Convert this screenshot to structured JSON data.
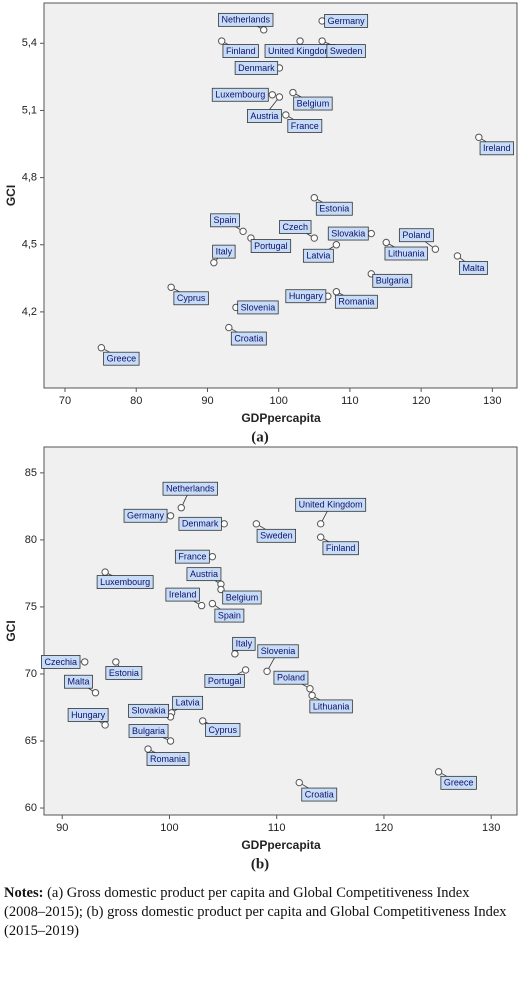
{
  "chart_data": [
    {
      "type": "scatter",
      "caption": "(a)",
      "xlabel": "GDPpercapita",
      "ylabel": "GCI",
      "xlim": [
        67.05,
        133.6
      ],
      "xticks": [
        70,
        80,
        90,
        100,
        110,
        120,
        130
      ],
      "ylim": [
        3.86,
        5.58
      ],
      "yticks": [
        {
          "value": 4.2,
          "label": "4,2"
        },
        {
          "value": 4.5,
          "label": "4,5"
        },
        {
          "value": 4.8,
          "label": "4,8"
        },
        {
          "value": 5.1,
          "label": "5,1"
        },
        {
          "value": 5.4,
          "label": "5,4"
        }
      ],
      "point_labels": [
        "Netherlands",
        "Germany",
        "Finland",
        "United Kingdom",
        "Sweden",
        "Denmark",
        "Luxembourg",
        "Belgium",
        "Austria",
        "France",
        "Ireland",
        "Estonia",
        "Spain",
        "Czech",
        "Portugal",
        "Slovakia",
        "Latvia",
        "Lithuania",
        "Poland",
        "Italy",
        "Malta",
        "Bulgaria",
        "Cyprus",
        "Hungary",
        "Romania",
        "Slovenia",
        "Croatia",
        "Greece"
      ],
      "x": [
        97.9,
        106.1,
        92.0,
        103.0,
        106.1,
        100.1,
        99.1,
        102.0,
        100.1,
        101.0,
        128.1,
        105.0,
        95.0,
        105.0,
        96.1,
        113.0,
        108.1,
        115.1,
        122.0,
        90.9,
        125.1,
        113.0,
        84.9,
        106.9,
        108.1,
        94.0,
        93.0,
        75.1
      ],
      "values": [
        5.46,
        5.5,
        5.41,
        5.41,
        5.41,
        5.29,
        5.17,
        5.18,
        5.16,
        5.08,
        4.98,
        4.71,
        4.56,
        4.53,
        4.53,
        4.55,
        4.5,
        4.51,
        4.48,
        4.42,
        4.45,
        4.37,
        4.31,
        4.27,
        4.29,
        4.22,
        4.13,
        4.04
      ]
    },
    {
      "type": "scatter",
      "caption": "(b)",
      "xlabel": "GDPpercapita",
      "ylabel": "GCI",
      "xlim": [
        88.3,
        132.5
      ],
      "xticks": [
        90,
        100,
        110,
        120,
        130
      ],
      "ylim": [
        59.48,
        86.93
      ],
      "yticks": [
        60,
        65,
        70,
        75,
        80,
        85
      ],
      "point_labels": [
        "Netherlands",
        "Germany",
        "Denmark",
        "Sweden",
        "United Kingdom",
        "Finland",
        "France",
        "Luxembourg",
        "Austria",
        "Belgium",
        "Ireland",
        "Spain",
        "Italy",
        "Czechia",
        "Estonia",
        "Portugal",
        "Slovenia",
        "Poland",
        "Lithuania",
        "Malta",
        "Hungary",
        "Latvia",
        "Slovakia",
        "Cyprus",
        "Bulgaria",
        "Romania",
        "Croatia",
        "Greece"
      ],
      "x": [
        101.1,
        100.1,
        105.1,
        108.1,
        114.1,
        114.1,
        104.0,
        94.0,
        104.8,
        104.8,
        103.0,
        104.0,
        106.1,
        92.1,
        95.0,
        107.1,
        109.1,
        113.1,
        113.3,
        93.1,
        94.0,
        100.2,
        100.1,
        103.1,
        100.1,
        98.0,
        112.1,
        125.1
      ],
      "values": [
        82.4,
        81.8,
        81.2,
        81.2,
        81.2,
        80.2,
        78.75,
        77.6,
        76.7,
        76.3,
        75.1,
        75.25,
        71.5,
        70.9,
        70.9,
        70.3,
        70.2,
        68.9,
        68.4,
        68.6,
        66.2,
        67.1,
        66.8,
        66.5,
        65.0,
        64.4,
        61.9,
        62.7
      ]
    }
  ],
  "notes": {
    "label": "Notes:",
    "text": "(a) Gross domestic product per capita and Global Competitiveness Index (2008–2015); (b) gross domestic product per capita and Global Competitiveness Index (2015–2019)"
  }
}
